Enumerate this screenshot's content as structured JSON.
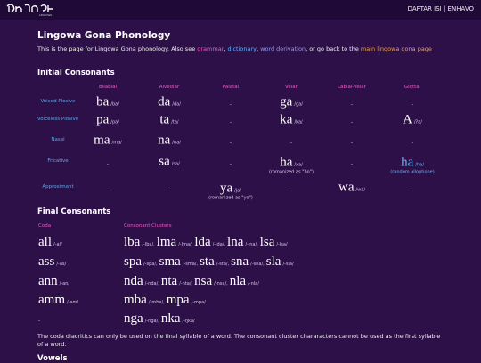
{
  "header": {
    "nav": "DAFTAR ISI | ENHAVO"
  },
  "page": {
    "title": "Lingowa Gona Phonology",
    "intro": [
      {
        "text": "This is the page for Lingowa Gona phonology. Also see "
      },
      {
        "text": "grammar",
        "link": true,
        "color": "#e95bc4"
      },
      {
        "text": ", "
      },
      {
        "text": "dictionary",
        "link": true,
        "color": "#6aa8ee"
      },
      {
        "text": ", "
      },
      {
        "text": "word derivation",
        "link": true,
        "color": "#8f9cf0"
      },
      {
        "text": ", or go back to the "
      },
      {
        "text": "main lingowa gona page",
        "link": true,
        "color": "#f0a050"
      }
    ],
    "initial": {
      "heading": "Initial Consonants",
      "columns": [
        "Bilabial",
        "Alveolar",
        "Palatal",
        "Velar",
        "Labial-Velar",
        "Glottal"
      ],
      "rows": [
        {
          "label": "Voiced Plosive",
          "cells": [
            {
              "word": "ba",
              "ipa": "/ba/"
            },
            {
              "word": "da",
              "ipa": "/da/"
            },
            "-",
            {
              "word": "ga",
              "ipa": "/ga/"
            },
            "-",
            "-"
          ]
        },
        {
          "label": "Voiceless Plosive",
          "cells": [
            {
              "word": "pa",
              "ipa": "/pa/"
            },
            {
              "word": "ta",
              "ipa": "/ta/"
            },
            "-",
            {
              "word": "ka",
              "ipa": "/ka/"
            },
            "-",
            {
              "word": "A",
              "ipa": "/ʔa/"
            }
          ]
        },
        {
          "label": "Nasal",
          "cells": [
            {
              "word": "ma",
              "ipa": "/ma/"
            },
            {
              "word": "na",
              "ipa": "/na/"
            },
            "-",
            "-",
            "-",
            "-"
          ]
        },
        {
          "label": "Fricative",
          "cells": [
            "-",
            {
              "word": "sa",
              "ipa": "/sa/"
            },
            "-",
            {
              "word": "ha",
              "ipa": "/xa/",
              "note": "(romanized as \"ho\")"
            },
            "-",
            {
              "word": "ha",
              "ipa": "/ha/",
              "note": "(random allophone)",
              "color": "#6ab0f0"
            }
          ]
        },
        {
          "label": "Approximant",
          "cells": [
            "-",
            "-",
            {
              "word": "ya",
              "ipa": "/ja/",
              "note": "(romanized as \"yo\")"
            },
            "-",
            {
              "word": "wa",
              "ipa": "/wa/"
            },
            "-"
          ]
        }
      ]
    },
    "final": {
      "heading": "Final Consonants",
      "coda_header": "Coda",
      "cluster_header": "Consonant Clusters",
      "rows": [
        {
          "coda": {
            "word": "all",
            "ipa": "/-al/"
          },
          "clusters": [
            {
              "word": "lba",
              "ipa": "/-lba/,"
            },
            {
              "word": "lma",
              "ipa": "/-lma/,"
            },
            {
              "word": "lda",
              "ipa": "/-lda/,"
            },
            {
              "word": "lna",
              "ipa": "/-lna/,"
            },
            {
              "word": "lsa",
              "ipa": "/-lsa/"
            }
          ]
        },
        {
          "coda": {
            "word": "ass",
            "ipa": "/-as/"
          },
          "clusters": [
            {
              "word": "spa",
              "ipa": "/-spa/,"
            },
            {
              "word": "sma",
              "ipa": "/-sma/,"
            },
            {
              "word": "sta",
              "ipa": "/-sta/,"
            },
            {
              "word": "sna",
              "ipa": "/-sna/,"
            },
            {
              "word": "sla",
              "ipa": "/-sla/"
            }
          ]
        },
        {
          "coda": {
            "word": "ann",
            "ipa": "/-an/"
          },
          "clusters": [
            {
              "word": "nda",
              "ipa": "/-nda/,"
            },
            {
              "word": "nta",
              "ipa": "/-nta/,"
            },
            {
              "word": "nsa",
              "ipa": "/-nsa/,"
            },
            {
              "word": "nla",
              "ipa": "/-nla/"
            }
          ]
        },
        {
          "coda": {
            "word": "amm",
            "ipa": "/-am/"
          },
          "clusters": [
            {
              "word": "mba",
              "ipa": "/-mba/,"
            },
            {
              "word": "mpa",
              "ipa": "/-mpa/"
            }
          ]
        },
        {
          "coda": "-",
          "clusters": [
            {
              "word": "nga",
              "ipa": "/-nga/,"
            },
            {
              "word": "nka",
              "ipa": "/-ŋka/"
            }
          ]
        }
      ],
      "note": "The coda diacritics can only be used on the final syllable of a word. The consonant cluster chararacters cannot be used as the first syllable of a word."
    },
    "vowels_heading": "Vowels"
  }
}
